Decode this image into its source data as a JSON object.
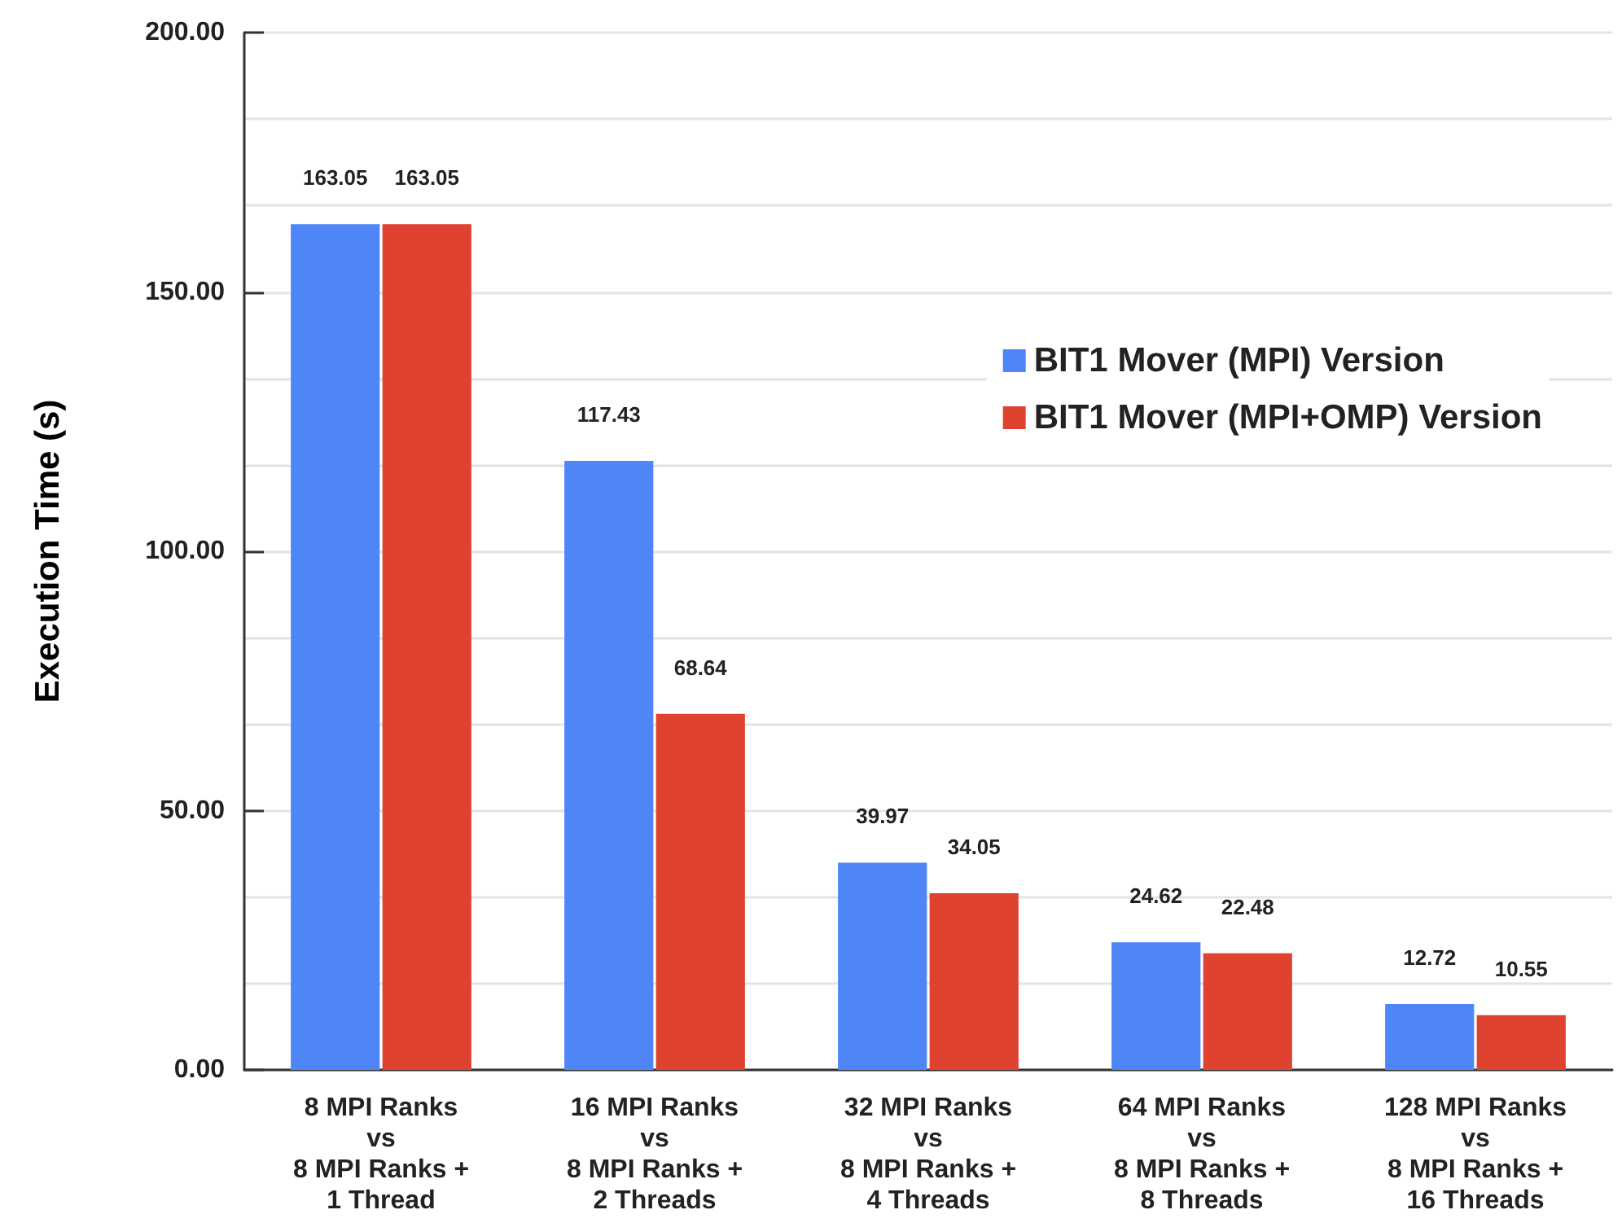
{
  "chart_data": {
    "type": "bar",
    "ylabel": "Execution Time (s)",
    "categories": [
      "8 MPI Ranks\nvs\n8 MPI Ranks +\n1 Thread",
      "16 MPI Ranks\nvs\n8 MPI Ranks +\n2 Threads",
      "32 MPI Ranks\nvs\n8 MPI Ranks +\n4 Threads",
      "64 MPI Ranks\nvs\n8 MPI Ranks +\n8 Threads",
      "128 MPI Ranks\nvs\n8 MPI Ranks +\n16 Threads"
    ],
    "series": [
      {
        "name": "BIT1 Mover (MPI) Version",
        "color": "#4f86f7",
        "values": [
          163.05,
          117.43,
          39.97,
          24.62,
          12.72
        ]
      },
      {
        "name": "BIT1 Mover (MPI+OMP) Version",
        "color": "#e04230",
        "values": [
          163.05,
          68.64,
          34.05,
          22.48,
          10.55
        ]
      }
    ],
    "ylim": [
      0,
      200
    ],
    "yticks": [
      {
        "value": 0,
        "label": "0.00"
      },
      {
        "value": 50,
        "label": "50.00"
      },
      {
        "value": 100,
        "label": "100.00"
      },
      {
        "value": 150,
        "label": "150.00"
      },
      {
        "value": 200,
        "label": "200.00"
      }
    ],
    "grid": "y",
    "legend": "right",
    "data_labels": true
  }
}
